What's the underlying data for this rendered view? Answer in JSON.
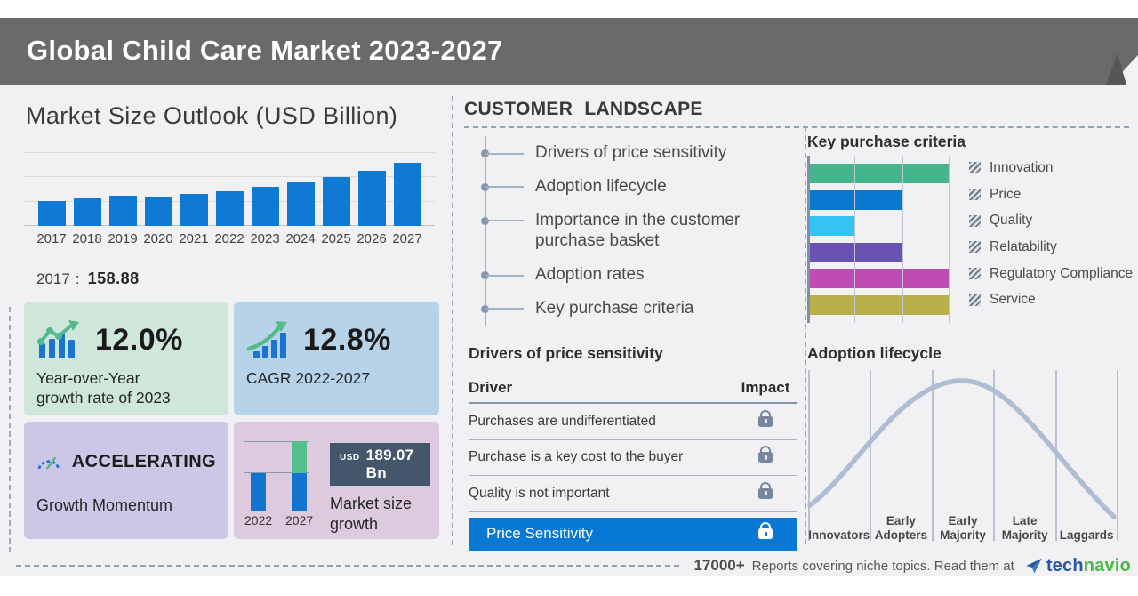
{
  "header": {
    "title": "Global Child Care Market 2023-2027"
  },
  "market_outlook": {
    "title": "Market Size Outlook (USD Billion)",
    "callout": {
      "year": "2017",
      "sep": ":",
      "value": "158.88"
    }
  },
  "stats": {
    "yoy": {
      "value": "12.0%",
      "label": "Year-over-Year\ngrowth rate of 2023"
    },
    "cagr": {
      "value": "12.8%",
      "label": "CAGR 2022-2027"
    },
    "momentum": {
      "value": "ACCELERATING",
      "label": "Growth Momentum"
    },
    "growth": {
      "currency": "USD",
      "amount": "189.07 Bn",
      "label": "Market size\ngrowth"
    }
  },
  "customer_landscape": {
    "title": "CUSTOMER LANDSCAPE",
    "items": [
      "Drivers of price sensitivity",
      "Adoption lifecycle",
      "Importance in the customer purchase basket",
      "Adoption rates",
      "Key purchase criteria"
    ]
  },
  "price_sensitivity": {
    "title": "Drivers of price sensitivity",
    "columns": [
      "Driver",
      "Impact"
    ],
    "rows": [
      "Purchases are undifferentiated",
      "Purchase is a key cost to the buyer",
      "Quality is not important"
    ],
    "highlight_row": "Price Sensitivity",
    "impact_icon": "lock-icon"
  },
  "key_purchase_criteria": {
    "title": "Key purchase criteria"
  },
  "adoption_lifecycle": {
    "title": "Adoption lifecycle",
    "stages": [
      "Innovators",
      "Early\nAdopters",
      "Early\nMajority",
      "Late\nMajority",
      "Laggards"
    ]
  },
  "footer": {
    "count": "17000+",
    "text": "Reports covering niche topics. Read them at",
    "brand": {
      "tech": "tech",
      "navio": "navio"
    }
  },
  "colors": {
    "header_band": "#6a6a6a",
    "bar_blue": "#0e7ad3",
    "highlight_blue": "#0778d4",
    "badge_slate": "#44566b",
    "card_green": "#cfe7db",
    "card_blue": "#b7d3ea",
    "card_purple": "#cdc7e7",
    "card_pink": "#ddcade",
    "curve_gray_blue": "#aebdd3",
    "brand_blue": "#2a56a8",
    "brand_green": "#4cb848"
  },
  "chart_data": [
    {
      "id": "market-size-outlook",
      "type": "bar",
      "title": "Market Size Outlook (USD Billion)",
      "categories": [
        "2017",
        "2018",
        "2019",
        "2020",
        "2021",
        "2022",
        "2023",
        "2024",
        "2025",
        "2026",
        "2027"
      ],
      "values": [
        158.88,
        176,
        195,
        185,
        205,
        225,
        251,
        279,
        314,
        357,
        406
      ],
      "labeled_values": {
        "2017": 158.88
      },
      "ylabel": "USD Billion",
      "grid": true,
      "bar_color": "#0e7ad3",
      "note": "only the 2017 value is printed; later values estimated from bar heights"
    },
    {
      "id": "key-purchase-criteria",
      "type": "bar",
      "orientation": "horizontal",
      "title": "Key purchase criteria",
      "categories": [
        "Innovation",
        "Price",
        "Quality",
        "Relatability",
        "Regulatory Compliance",
        "Service"
      ],
      "values": [
        3,
        2,
        1,
        2,
        3,
        3
      ],
      "xlim": [
        0,
        3
      ],
      "colors": [
        "#45b58c",
        "#0b78d0",
        "#35c4f2",
        "#6a52b3",
        "#bf4cb5",
        "#b9b04b"
      ],
      "legend_position": "right",
      "note": "bar lengths read in gridline units"
    },
    {
      "id": "market-size-growth",
      "type": "bar",
      "stacked": true,
      "title": "Market size growth",
      "categories": [
        "2022",
        "2027"
      ],
      "series": [
        {
          "name": "2022 base",
          "values": [
            1,
            1
          ]
        },
        {
          "name": "growth 2022-2027",
          "values": [
            0,
            0.85
          ]
        }
      ],
      "growth_label": "USD 189.07 Bn",
      "colors": {
        "base": "#1274cc",
        "growth": "#56bd8d"
      }
    },
    {
      "id": "adoption-lifecycle",
      "type": "line",
      "title": "Adoption lifecycle",
      "categories": [
        "Innovators",
        "Early Adopters",
        "Early Majority",
        "Late Majority",
        "Laggards"
      ],
      "shape": "bell curve peaking at Early Majority",
      "color": "#aebdd3"
    }
  ]
}
